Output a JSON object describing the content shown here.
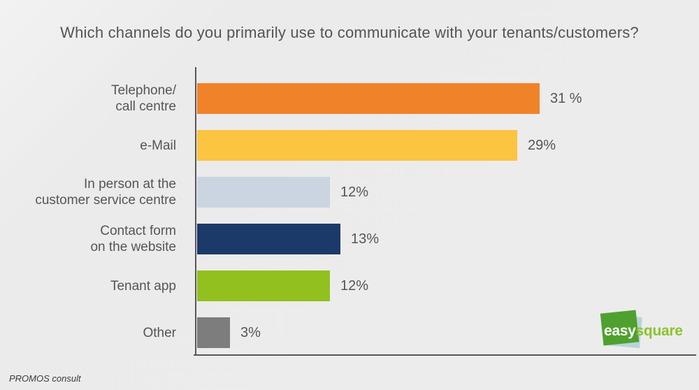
{
  "chart_data": {
    "type": "bar",
    "orientation": "horizontal",
    "title": "Which channels do you primarily use to communicate with your tenants/customers?",
    "categories": [
      [
        "Telephone/",
        "call centre"
      ],
      [
        "e-Mail"
      ],
      [
        "In person at the",
        "customer service centre"
      ],
      [
        "Contact form",
        "on the website"
      ],
      [
        "Tenant app"
      ],
      [
        "Other"
      ]
    ],
    "values": [
      31,
      29,
      12,
      13,
      12,
      3
    ],
    "unit": "%",
    "value_labels": [
      "31 %",
      "29%",
      "12%",
      "13%",
      "12%",
      "3%"
    ],
    "bar_colors": [
      "#F0832A",
      "#FBC441",
      "#CBD5E1",
      "#1B3A6A",
      "#92C01F",
      "#7D7D7D"
    ],
    "slugs": [
      "telephone-call-centre",
      "e-mail",
      "in-person-customer-service-centre",
      "contact-form-website",
      "tenant-app",
      "other"
    ],
    "xlim": [
      0,
      31
    ],
    "grid": false,
    "legend": false,
    "value_label_position": "right"
  },
  "footer": {
    "credit": "PROMOS consult"
  },
  "logo": {
    "part1": "easy",
    "part2": "square",
    "square_color": "#4EA12E",
    "part2_color": "#8BC32C",
    "shadow_square_color": "#B9D4DA"
  },
  "colors": {
    "background": "#ECECEC",
    "axis": "#58585A",
    "text": "#555558"
  }
}
